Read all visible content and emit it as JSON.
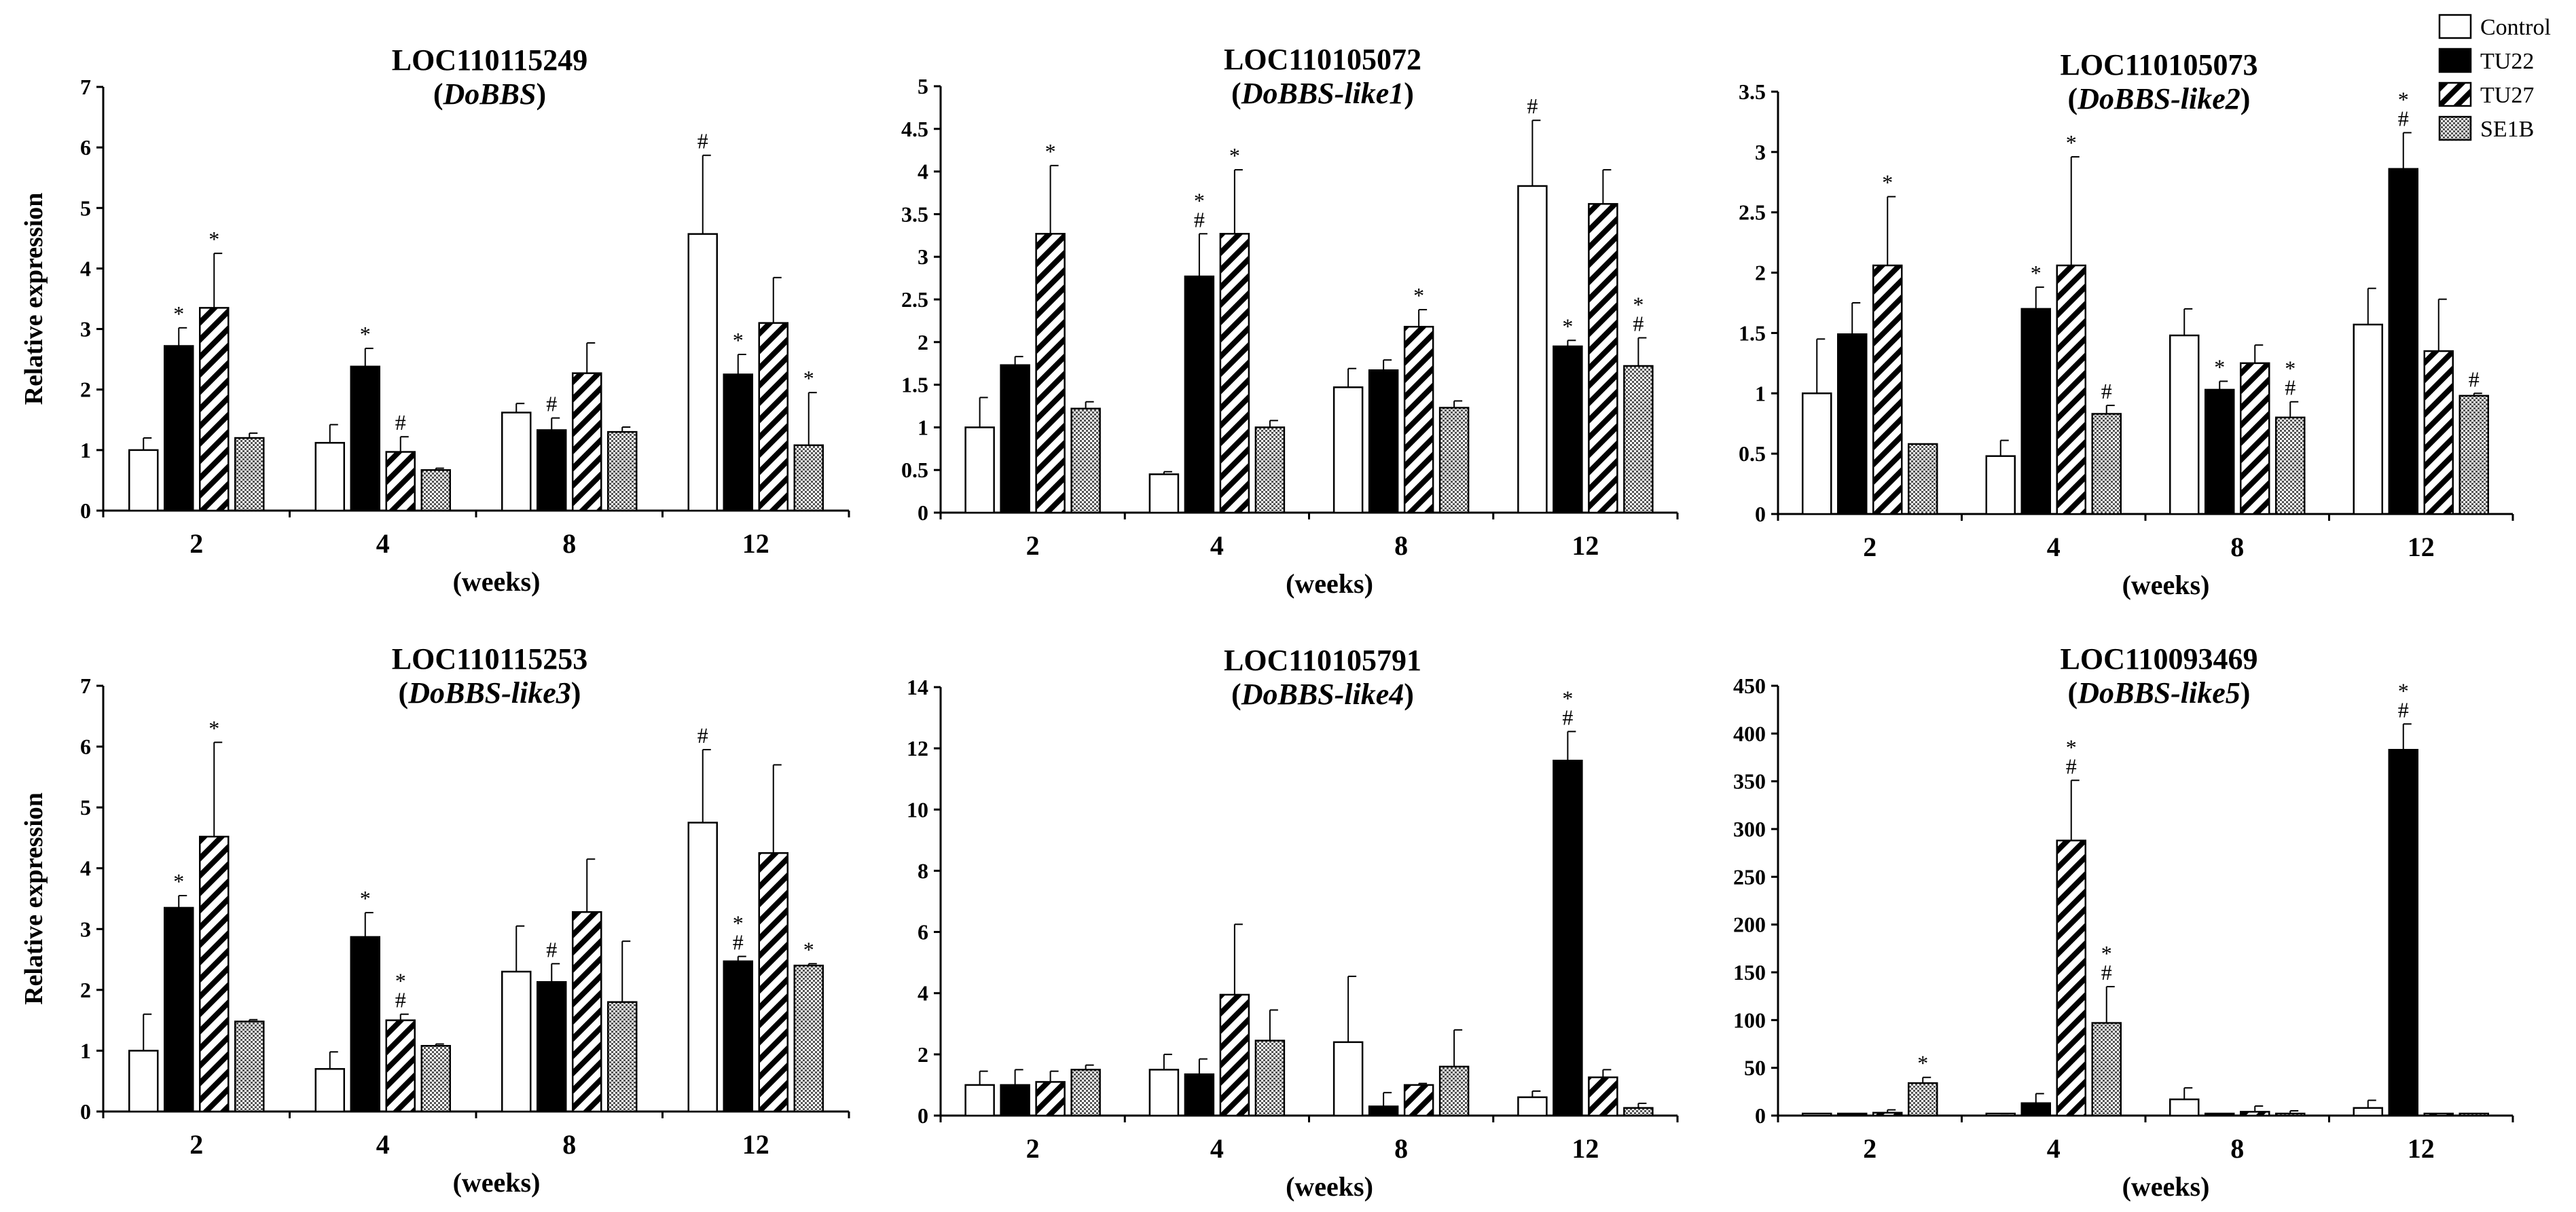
{
  "chart_data": [
    {
      "type": "bar",
      "title": "LOC110115249",
      "subtitle": "DoBBS",
      "xlabel": "(weeks)",
      "ylabel": "Relative expression",
      "ylim": [
        0,
        7
      ],
      "yticks": [
        0,
        1,
        2,
        3,
        4,
        5,
        6,
        7
      ],
      "categories": [
        "2",
        "4",
        "8",
        "12"
      ],
      "series": [
        {
          "name": "Control",
          "values": [
            1.0,
            1.12,
            1.62,
            4.57
          ],
          "errors": [
            0.2,
            0.3,
            0.15,
            1.3
          ],
          "marks": [
            "",
            "",
            "",
            "#"
          ]
        },
        {
          "name": "TU22",
          "values": [
            2.72,
            2.38,
            1.33,
            2.25
          ],
          "errors": [
            0.3,
            0.3,
            0.2,
            0.33
          ],
          "marks": [
            "*",
            "*",
            "#",
            "*"
          ]
        },
        {
          "name": "TU27",
          "values": [
            3.35,
            0.97,
            2.27,
            3.1
          ],
          "errors": [
            0.9,
            0.25,
            0.5,
            0.75
          ],
          "marks": [
            "*",
            "#",
            "",
            ""
          ]
        },
        {
          "name": "SE1B",
          "values": [
            1.2,
            0.67,
            1.3,
            1.08
          ],
          "errors": [
            0.08,
            0.03,
            0.08,
            0.87
          ],
          "marks": [
            "",
            "",
            "",
            "*"
          ]
        }
      ]
    },
    {
      "type": "bar",
      "title": "LOC110105072",
      "subtitle": "DoBBS-like1",
      "xlabel": "(weeks)",
      "ylabel": "",
      "ylim": [
        0,
        5
      ],
      "yticks": [
        0,
        0.5,
        1,
        1.5,
        2,
        2.5,
        3,
        3.5,
        4,
        4.5,
        5
      ],
      "categories": [
        "2",
        "4",
        "8",
        "12"
      ],
      "series": [
        {
          "name": "Control",
          "values": [
            1.0,
            0.45,
            1.47,
            3.83
          ],
          "errors": [
            0.35,
            0.03,
            0.22,
            0.77
          ],
          "marks": [
            "",
            "",
            "",
            "#"
          ]
        },
        {
          "name": "TU22",
          "values": [
            1.73,
            2.77,
            1.67,
            1.95
          ],
          "errors": [
            0.1,
            0.5,
            0.12,
            0.07
          ],
          "marks": [
            "",
            "*\n#",
            "",
            "*"
          ]
        },
        {
          "name": "TU27",
          "values": [
            3.27,
            3.27,
            2.18,
            3.62
          ],
          "errors": [
            0.8,
            0.75,
            0.2,
            0.4
          ],
          "marks": [
            "*",
            "*",
            "*",
            ""
          ]
        },
        {
          "name": "SE1B",
          "values": [
            1.22,
            1.0,
            1.23,
            1.72
          ],
          "errors": [
            0.08,
            0.08,
            0.08,
            0.33
          ],
          "marks": [
            "",
            "",
            "",
            "*\n#"
          ]
        }
      ]
    },
    {
      "type": "bar",
      "title": "LOC110105073",
      "subtitle": "DoBBS-like2",
      "xlabel": "(weeks)",
      "ylabel": "",
      "ylim": [
        0,
        3.5
      ],
      "yticks": [
        0,
        0.5,
        1,
        1.5,
        2,
        2.5,
        3,
        3.5
      ],
      "categories": [
        "2",
        "4",
        "8",
        "12"
      ],
      "series": [
        {
          "name": "Control",
          "values": [
            1.0,
            0.48,
            1.48,
            1.57
          ],
          "errors": [
            0.45,
            0.13,
            0.22,
            0.3
          ],
          "marks": [
            "",
            "",
            "",
            ""
          ]
        },
        {
          "name": "TU22",
          "values": [
            1.49,
            1.7,
            1.03,
            2.86
          ],
          "errors": [
            0.26,
            0.18,
            0.07,
            0.3
          ],
          "marks": [
            "",
            "*",
            "*",
            "*\n#"
          ]
        },
        {
          "name": "TU27",
          "values": [
            2.06,
            2.06,
            1.25,
            1.35
          ],
          "errors": [
            0.57,
            0.9,
            0.15,
            0.43
          ],
          "marks": [
            "*",
            "*",
            "",
            ""
          ]
        },
        {
          "name": "SE1B",
          "values": [
            0.58,
            0.83,
            0.8,
            0.98
          ],
          "errors": [
            0.0,
            0.07,
            0.13,
            0.02
          ],
          "marks": [
            "",
            "#",
            "*\n#",
            "#"
          ]
        }
      ]
    },
    {
      "type": "bar",
      "title": "LOC110115253",
      "subtitle": "DoBBS-like3",
      "xlabel": "(weeks)",
      "ylabel": "Relative expression",
      "ylim": [
        0,
        7
      ],
      "yticks": [
        0,
        1,
        2,
        3,
        4,
        5,
        6,
        7
      ],
      "categories": [
        "2",
        "4",
        "8",
        "12"
      ],
      "series": [
        {
          "name": "Control",
          "values": [
            1.0,
            0.7,
            2.3,
            4.75
          ],
          "errors": [
            0.6,
            0.28,
            0.75,
            1.2
          ],
          "marks": [
            "",
            "",
            "",
            "#"
          ]
        },
        {
          "name": "TU22",
          "values": [
            3.35,
            2.87,
            2.13,
            2.47
          ],
          "errors": [
            0.2,
            0.4,
            0.3,
            0.08
          ],
          "marks": [
            "*",
            "*",
            "#",
            "*\n#"
          ]
        },
        {
          "name": "TU27",
          "values": [
            4.52,
            1.5,
            3.28,
            4.25
          ],
          "errors": [
            1.55,
            0.1,
            0.87,
            1.45
          ],
          "marks": [
            "*",
            "*\n#",
            "",
            ""
          ]
        },
        {
          "name": "SE1B",
          "values": [
            1.48,
            1.08,
            1.8,
            2.4
          ],
          "errors": [
            0.03,
            0.03,
            1.0,
            0.03
          ],
          "marks": [
            "",
            "",
            "",
            "*"
          ]
        }
      ]
    },
    {
      "type": "bar",
      "title": "LOC110105791",
      "subtitle": "DoBBS-like4",
      "xlabel": "(weeks)",
      "ylabel": "",
      "ylim": [
        0,
        14
      ],
      "yticks": [
        0,
        2,
        4,
        6,
        8,
        10,
        12,
        14
      ],
      "categories": [
        "2",
        "4",
        "8",
        "12"
      ],
      "series": [
        {
          "name": "Control",
          "values": [
            1.0,
            1.5,
            2.4,
            0.6
          ],
          "errors": [
            0.45,
            0.5,
            2.15,
            0.2
          ],
          "marks": [
            "",
            "",
            "",
            ""
          ]
        },
        {
          "name": "TU22",
          "values": [
            1.0,
            1.35,
            0.3,
            11.6
          ],
          "errors": [
            0.5,
            0.5,
            0.45,
            0.95
          ],
          "marks": [
            "",
            "",
            "",
            "*\n#"
          ]
        },
        {
          "name": "TU27",
          "values": [
            1.1,
            3.95,
            1.0,
            1.25
          ],
          "errors": [
            0.35,
            2.3,
            0.05,
            0.25
          ],
          "marks": [
            "",
            "",
            "",
            ""
          ]
        },
        {
          "name": "SE1B",
          "values": [
            1.5,
            2.45,
            1.6,
            0.25
          ],
          "errors": [
            0.15,
            1.0,
            1.2,
            0.15
          ],
          "marks": [
            "",
            "",
            "",
            ""
          ]
        }
      ]
    },
    {
      "type": "bar",
      "title": "LOC110093469",
      "subtitle": "DoBBS-like5",
      "xlabel": "(weeks)",
      "ylabel": "",
      "ylim": [
        0,
        450
      ],
      "yticks": [
        0,
        50,
        100,
        150,
        200,
        250,
        300,
        350,
        400,
        450
      ],
      "categories": [
        "2",
        "4",
        "8",
        "12"
      ],
      "series": [
        {
          "name": "Control",
          "values": [
            1,
            1,
            17,
            8
          ],
          "errors": [
            0,
            1,
            12,
            8
          ],
          "marks": [
            "",
            "",
            "",
            ""
          ]
        },
        {
          "name": "TU22",
          "values": [
            1,
            13,
            1,
            383
          ],
          "errors": [
            0,
            10,
            0,
            27
          ],
          "marks": [
            "",
            "",
            "",
            "*\n#"
          ]
        },
        {
          "name": "TU27",
          "values": [
            3,
            288,
            4,
            1
          ],
          "errors": [
            3,
            63,
            6,
            0
          ],
          "marks": [
            "",
            "*\n#",
            "",
            ""
          ]
        },
        {
          "name": "SE1B",
          "values": [
            34,
            97,
            2,
            1
          ],
          "errors": [
            6,
            38,
            3,
            0
          ],
          "marks": [
            "*",
            "*\n#",
            "",
            ""
          ]
        }
      ]
    }
  ],
  "legend": {
    "placement": "top-right",
    "items": [
      {
        "label": "Control",
        "pattern": "white"
      },
      {
        "label": "TU22",
        "pattern": "black"
      },
      {
        "label": "TU27",
        "pattern": "diagonal-hatch"
      },
      {
        "label": "SE1B",
        "pattern": "crosshatch"
      }
    ]
  }
}
